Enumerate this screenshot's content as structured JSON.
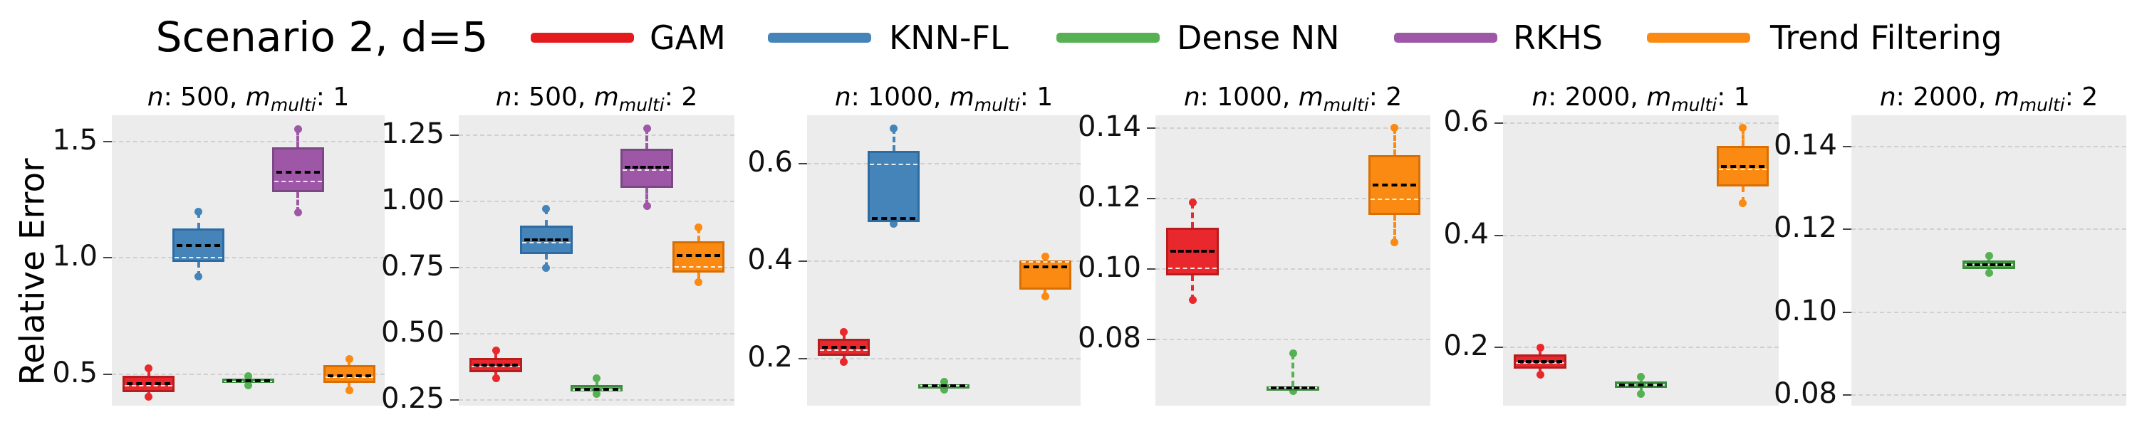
{
  "figure": {
    "title": "Scenario 2, d=5",
    "ylabel": "Relative Error"
  },
  "legend": {
    "items": [
      {
        "label": "GAM",
        "color": "#e41a1c"
      },
      {
        "label": "KNN-FL",
        "color": "#4584b8"
      },
      {
        "label": "Dense NN",
        "color": "#55b152"
      },
      {
        "label": "RKHS",
        "color": "#9d57a6"
      },
      {
        "label": "Trend Filtering",
        "color": "#fb8a12"
      }
    ]
  },
  "chart_data": {
    "type": "boxplot-grid",
    "title": "Scenario 2, d=5",
    "ylabel": "Relative Error",
    "grid": "horizontal-dashed",
    "legend_position": "top",
    "title_format": {
      "n_var": "n",
      "m_var": "m",
      "m_sub": "multi"
    },
    "methods": [
      {
        "name": "GAM",
        "fill": "#e8282c",
        "edge": "#b71c1e"
      },
      {
        "name": "KNN-FL",
        "fill": "#4584b8",
        "edge": "#2d6ba3"
      },
      {
        "name": "Dense NN",
        "fill": "#55b152",
        "edge": "#3d8b3f"
      },
      {
        "name": "RKHS",
        "fill": "#9d57a6",
        "edge": "#7b4784"
      },
      {
        "name": "Trend Filtering",
        "fill": "#fb8a12",
        "edge": "#d96f03"
      }
    ],
    "subplots": [
      {
        "n": "500",
        "m": "1",
        "ylim": [
          0.365,
          1.613
        ],
        "ticks": [
          {
            "v": 1.5,
            "label": "1.5"
          },
          {
            "v": 1.0,
            "label": "1.0"
          },
          {
            "v": 0.5,
            "label": "0.5"
          }
        ],
        "boxes": [
          {
            "method": "GAM",
            "lo": 0.403,
            "q1": 0.424,
            "median": 0.45,
            "mean": 0.46,
            "q3": 0.493,
            "hi": 0.525
          },
          {
            "method": "KNN-FL",
            "lo": 0.919,
            "q1": 0.984,
            "median": 1.002,
            "mean": 1.053,
            "q3": 1.127,
            "hi": 1.198
          },
          {
            "method": "Dense NN",
            "lo": 0.452,
            "q1": 0.462,
            "median": 0.47,
            "mean": 0.472,
            "q3": 0.482,
            "hi": 0.493
          },
          {
            "method": "RKHS",
            "lo": 1.195,
            "q1": 1.282,
            "median": 1.33,
            "mean": 1.368,
            "q3": 1.475,
            "hi": 1.552
          },
          {
            "method": "Trend Filtering",
            "lo": 0.432,
            "q1": 0.462,
            "median": 0.488,
            "mean": 0.495,
            "q3": 0.539,
            "hi": 0.564
          }
        ]
      },
      {
        "n": "500",
        "m": "2",
        "ylim": [
          0.2276,
          1.3264
        ],
        "ticks": [
          {
            "v": 1.25,
            "label": "1.25"
          },
          {
            "v": 1.0,
            "label": "1.00"
          },
          {
            "v": 0.75,
            "label": "0.75"
          },
          {
            "v": 0.5,
            "label": "0.50"
          },
          {
            "v": 0.25,
            "label": "0.25"
          }
        ],
        "boxes": [
          {
            "method": "GAM",
            "lo": 0.331,
            "q1": 0.355,
            "median": 0.376,
            "mean": 0.382,
            "q3": 0.409,
            "hi": 0.436
          },
          {
            "method": "KNN-FL",
            "lo": 0.75,
            "q1": 0.802,
            "median": 0.845,
            "mean": 0.856,
            "q3": 0.91,
            "hi": 0.973
          },
          {
            "method": "Dense NN",
            "lo": 0.272,
            "q1": 0.281,
            "median": 0.287,
            "mean": 0.29,
            "q3": 0.307,
            "hi": 0.331
          },
          {
            "method": "RKHS",
            "lo": 0.983,
            "q1": 1.051,
            "median": 1.118,
            "mean": 1.129,
            "q3": 1.201,
            "hi": 1.277
          },
          {
            "method": "Trend Filtering",
            "lo": 0.694,
            "q1": 0.73,
            "median": 0.753,
            "mean": 0.795,
            "q3": 0.849,
            "hi": 0.901
          }
        ]
      },
      {
        "n": "1000",
        "m": "1",
        "ylim": [
          0.1036,
          0.6993
        ],
        "ticks": [
          {
            "v": 0.6,
            "label": "0.6"
          },
          {
            "v": 0.4,
            "label": "0.4"
          },
          {
            "v": 0.2,
            "label": "0.2"
          }
        ],
        "boxes": [
          {
            "method": "GAM",
            "lo": 0.194,
            "q1": 0.206,
            "median": 0.218,
            "mean": 0.223,
            "q3": 0.241,
            "hi": 0.254
          },
          {
            "method": "KNN-FL",
            "lo": 0.476,
            "q1": 0.481,
            "median": 0.599,
            "mean": 0.488,
            "q3": 0.627,
            "hi": 0.673
          },
          {
            "method": "Dense NN",
            "lo": 0.136,
            "q1": 0.14,
            "median": 0.144,
            "mean": 0.145,
            "q3": 0.148,
            "hi": 0.153
          },
          {
            "method": "Trend Filtering",
            "lo": 0.327,
            "q1": 0.342,
            "median": 0.398,
            "mean": 0.389,
            "q3": 0.402,
            "hi": 0.409
          }
        ]
      },
      {
        "n": "1000",
        "m": "2",
        "ylim": [
          0.0613,
          0.1437
        ],
        "ticks": [
          {
            "v": 0.14,
            "label": "0.14"
          },
          {
            "v": 0.12,
            "label": "0.12"
          },
          {
            "v": 0.1,
            "label": "0.10"
          },
          {
            "v": 0.08,
            "label": "0.08"
          }
        ],
        "boxes": [
          {
            "method": "GAM",
            "lo": 0.0912,
            "q1": 0.0983,
            "median": 0.1003,
            "mean": 0.1051,
            "q3": 0.1118,
            "hi": 0.1189
          },
          {
            "method": "Dense NN",
            "lo": 0.0655,
            "q1": 0.066,
            "median": 0.0663,
            "mean": 0.0664,
            "q3": 0.0667,
            "hi": 0.0761
          },
          {
            "method": "Trend Filtering",
            "lo": 0.1077,
            "q1": 0.1155,
            "median": 0.1199,
            "mean": 0.1239,
            "q3": 0.1324,
            "hi": 0.1401
          }
        ]
      },
      {
        "n": "2000",
        "m": "1",
        "ylim": [
          0.0963,
          0.6144
        ],
        "ticks": [
          {
            "v": 0.6,
            "label": "0.6"
          },
          {
            "v": 0.4,
            "label": "0.4"
          },
          {
            "v": 0.2,
            "label": "0.2"
          }
        ],
        "boxes": [
          {
            "method": "GAM",
            "lo": 0.152,
            "q1": 0.162,
            "median": 0.172,
            "mean": 0.175,
            "q3": 0.188,
            "hi": 0.2
          },
          {
            "method": "Dense NN",
            "lo": 0.1175,
            "q1": 0.128,
            "median": 0.133,
            "mean": 0.1335,
            "q3": 0.139,
            "hi": 0.148
          },
          {
            "method": "Trend Filtering",
            "lo": 0.458,
            "q1": 0.488,
            "median": 0.518,
            "mean": 0.5225,
            "q3": 0.56,
            "hi": 0.592
          }
        ]
      },
      {
        "n": "2000",
        "m": "2",
        "ylim": [
          0.0774,
          0.1476
        ],
        "ticks": [
          {
            "v": 0.14,
            "label": "0.14"
          },
          {
            "v": 0.12,
            "label": "0.12"
          },
          {
            "v": 0.1,
            "label": "0.10"
          },
          {
            "v": 0.08,
            "label": "0.08"
          }
        ],
        "boxes": [
          {
            "method": "Dense NN",
            "lo": 0.1095,
            "q1": 0.1105,
            "median": 0.1114,
            "mean": 0.1115,
            "q3": 0.1125,
            "hi": 0.1137
          }
        ]
      }
    ]
  }
}
